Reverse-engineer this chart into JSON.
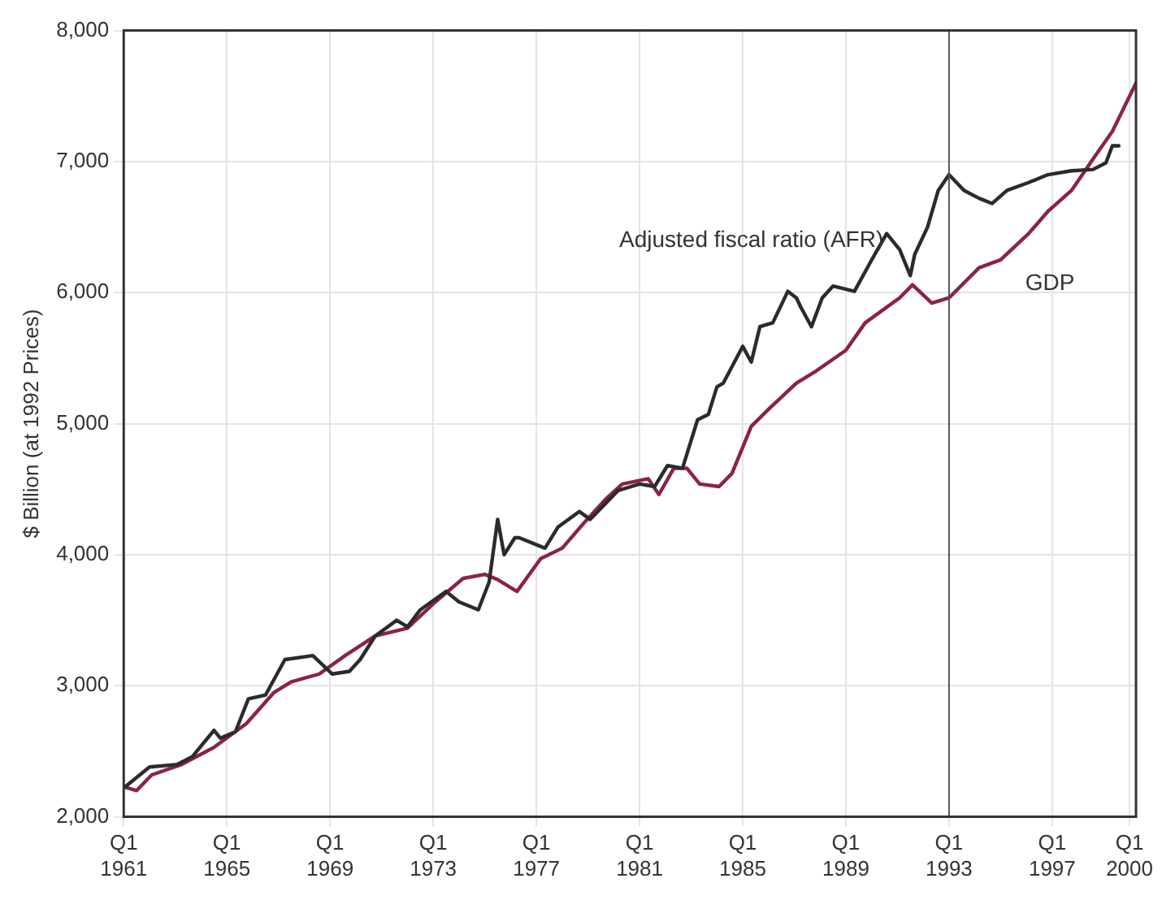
{
  "chart_data": {
    "type": "line",
    "ylabel": "$ Billion (at 1992 Prices)",
    "xlim": [
      "1961-01",
      "2000-04"
    ],
    "xticks": [
      {
        "value": "1961-01",
        "label": "Q1 1961"
      },
      {
        "value": "1965-01",
        "label": "Q1 1965"
      },
      {
        "value": "1969-01",
        "label": "Q1 1969"
      },
      {
        "value": "1973-01",
        "label": "Q1 1973"
      },
      {
        "value": "1977-01",
        "label": "Q1 1977"
      },
      {
        "value": "1981-01",
        "label": "Q1 1981"
      },
      {
        "value": "1985-01",
        "label": "Q1 1985"
      },
      {
        "value": "1989-01",
        "label": "Q1 1989"
      },
      {
        "value": "1993-01",
        "label": "Q1 1993"
      },
      {
        "value": "1997-01",
        "label": "Q1 1997"
      },
      {
        "value": "2000-01",
        "label": "Q1 2000"
      }
    ],
    "ylim": [
      2000,
      8000
    ],
    "yticks": [
      {
        "value": 2000,
        "label": "2,000"
      },
      {
        "value": 3000,
        "label": "3,000"
      },
      {
        "value": 4000,
        "label": "4,000"
      },
      {
        "value": 5000,
        "label": "5,000"
      },
      {
        "value": 6000,
        "label": "6,000"
      },
      {
        "value": 7000,
        "label": "7,000"
      },
      {
        "value": 8000,
        "label": "8,000"
      }
    ],
    "grid": true,
    "marker": "none",
    "line_style": "solid",
    "ref_lines": [
      {
        "axis": "x",
        "value": "1993-01",
        "color": "#555555"
      }
    ],
    "series": [
      {
        "name": "Adjusted fiscal ratio (AFR)",
        "color": "#2b2b2b",
        "x": [
          "1961-01",
          "1962-01",
          "1963-02",
          "1963-09",
          "1964-07",
          "1964-10",
          "1965-05",
          "1965-11",
          "1966-07",
          "1967-04",
          "1968-05",
          "1969-02",
          "1969-10",
          "1970-03",
          "1970-10",
          "1971-08",
          "1972-01",
          "1972-07",
          "1973-07",
          "1974-01",
          "1974-10",
          "1975-03",
          "1975-07",
          "1975-10",
          "1976-03",
          "1976-05",
          "1977-05",
          "1977-11",
          "1978-09",
          "1979-02",
          "1980-03",
          "1981-01",
          "1981-08",
          "1982-02",
          "1982-09",
          "1983-04",
          "1983-09",
          "1984-01",
          "1984-04",
          "1985-01",
          "1985-05",
          "1985-09",
          "1986-03",
          "1986-10",
          "1987-02",
          "1987-04",
          "1987-09",
          "1988-02",
          "1988-07",
          "1989-05",
          "1990-01",
          "1990-08",
          "1991-02",
          "1991-07",
          "1991-09",
          "1992-03",
          "1992-08",
          "1993-01",
          "1993-08",
          "1994-03",
          "1994-09",
          "1995-04",
          "1996-02",
          "1996-11",
          "1997-10",
          "1998-08",
          "1999-02",
          "1999-05",
          "1999-08"
        ],
        "values": [
          2220,
          2380,
          2400,
          2460,
          2660,
          2600,
          2650,
          2900,
          2930,
          3200,
          3230,
          3090,
          3110,
          3200,
          3380,
          3500,
          3450,
          3580,
          3720,
          3640,
          3580,
          3790,
          4270,
          4000,
          4130,
          4130,
          4050,
          4210,
          4330,
          4270,
          4490,
          4540,
          4520,
          4680,
          4660,
          5030,
          5070,
          5280,
          5310,
          5590,
          5470,
          5740,
          5770,
          6010,
          5960,
          5890,
          5740,
          5960,
          6050,
          6010,
          6250,
          6450,
          6330,
          6130,
          6290,
          6500,
          6780,
          6900,
          6780,
          6720,
          6680,
          6780,
          6840,
          6900,
          6930,
          6940,
          6990,
          7120,
          7120
        ]
      },
      {
        "name": "GDP",
        "color": "#8b2346",
        "x": [
          "1961-01",
          "1961-07",
          "1962-02",
          "1963-04",
          "1964-07",
          "1965-10",
          "1966-11",
          "1967-07",
          "1968-08",
          "1969-08",
          "1970-10",
          "1972-01",
          "1973-02",
          "1974-03",
          "1975-01",
          "1975-07",
          "1976-04",
          "1977-03",
          "1978-01",
          "1978-11",
          "1979-09",
          "1980-05",
          "1981-05",
          "1981-10",
          "1982-05",
          "1982-11",
          "1983-05",
          "1984-02",
          "1984-08",
          "1985-05",
          "1986-01",
          "1987-02",
          "1987-11",
          "1989-01",
          "1989-10",
          "1991-02",
          "1991-08",
          "1992-05",
          "1993-01",
          "1994-03",
          "1995-01",
          "1996-02",
          "1996-11",
          "1997-10",
          "1998-08",
          "1999-05",
          "2000-04"
        ],
        "values": [
          2230,
          2200,
          2320,
          2400,
          2530,
          2710,
          2950,
          3030,
          3090,
          3230,
          3380,
          3440,
          3640,
          3820,
          3850,
          3810,
          3720,
          3970,
          4050,
          4240,
          4420,
          4540,
          4580,
          4460,
          4660,
          4660,
          4540,
          4520,
          4620,
          4980,
          5110,
          5310,
          5400,
          5560,
          5770,
          5960,
          6060,
          5920,
          5960,
          6190,
          6250,
          6450,
          6620,
          6780,
          7020,
          7230,
          7600
        ]
      }
    ]
  }
}
